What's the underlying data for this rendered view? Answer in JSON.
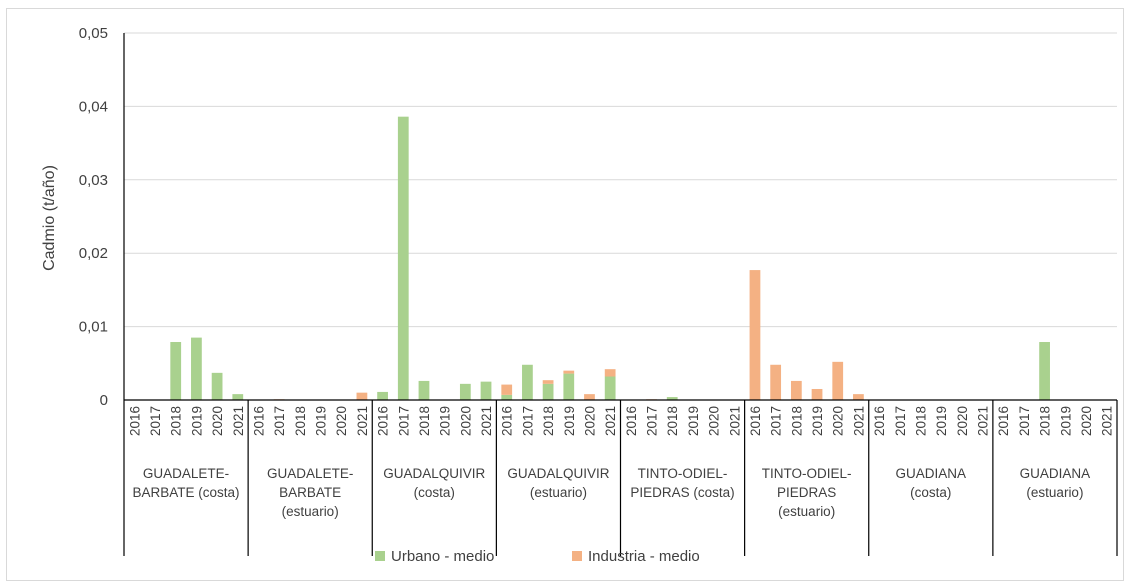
{
  "chart_data": {
    "type": "bar",
    "stacked": true,
    "title": "",
    "ylabel": "Cadmio (t/año)",
    "ylim": [
      0,
      0.05
    ],
    "yticks": [
      "0",
      "0,01",
      "0,02",
      "0,03",
      "0,04",
      "0,05"
    ],
    "ytick_values": [
      0,
      0.01,
      0.02,
      0.03,
      0.04,
      0.05
    ],
    "grid": true,
    "legend_position": "bottom",
    "years": [
      "2016",
      "2017",
      "2018",
      "2019",
      "2020",
      "2021"
    ],
    "groups": [
      {
        "label_lines": [
          "GUADALETE-",
          "BARBATE (costa)"
        ]
      },
      {
        "label_lines": [
          "GUADALETE-",
          "BARBATE",
          "(estuario)"
        ]
      },
      {
        "label_lines": [
          "GUADALQUIVIR",
          "(costa)"
        ]
      },
      {
        "label_lines": [
          "GUADALQUIVIR",
          "(estuario)"
        ]
      },
      {
        "label_lines": [
          "TINTO-ODIEL-",
          "PIEDRAS (costa)"
        ]
      },
      {
        "label_lines": [
          "TINTO-ODIEL-",
          "PIEDRAS",
          "(estuario)"
        ]
      },
      {
        "label_lines": [
          "GUADIANA",
          "(costa)"
        ]
      },
      {
        "label_lines": [
          "GUADIANA",
          "(estuario)"
        ]
      }
    ],
    "series": [
      {
        "name": "Urbano - medio",
        "color": "#a9d18e",
        "values": [
          [
            0,
            0,
            0.0079,
            0.0085,
            0.0037,
            0.0008
          ],
          [
            0,
            0,
            0,
            0,
            0,
            0
          ],
          [
            0.0011,
            0.0386,
            0.0026,
            0,
            0.0022,
            0.0025
          ],
          [
            0.0007,
            0.0048,
            0.0022,
            0.0036,
            0,
            0.0032
          ],
          [
            0,
            0,
            0.0004,
            0,
            0,
            0
          ],
          [
            0,
            0,
            0,
            0,
            0,
            0
          ],
          [
            0,
            0,
            0,
            0,
            0,
            0
          ],
          [
            0,
            0,
            0.0079,
            0,
            0,
            0
          ]
        ]
      },
      {
        "name": "Industria - medio",
        "color": "#f4b183",
        "values": [
          [
            0,
            0,
            0,
            0,
            0,
            0
          ],
          [
            0,
            0.0001,
            0,
            0,
            0,
            0.001
          ],
          [
            0,
            0,
            0,
            0,
            0,
            0
          ],
          [
            0.0014,
            0,
            0.0005,
            0.0004,
            0.0008,
            0.001
          ],
          [
            0,
            0.0001,
            0,
            0,
            0,
            0
          ],
          [
            0.0177,
            0.0048,
            0.0026,
            0.0015,
            0.0052,
            0.0008
          ],
          [
            0,
            0,
            0,
            0,
            0,
            0
          ],
          [
            0,
            0,
            0,
            0,
            0,
            0
          ]
        ]
      }
    ]
  }
}
